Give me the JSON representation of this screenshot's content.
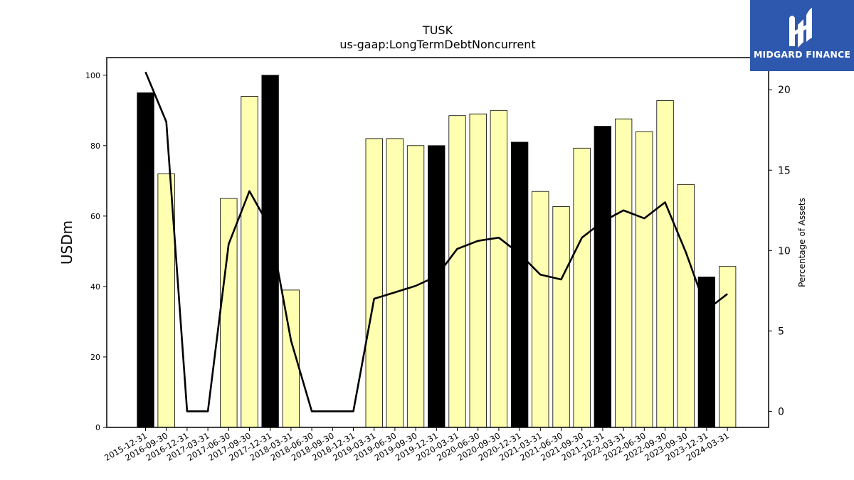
{
  "chart_data": {
    "type": "bar",
    "title": "TUSK",
    "subtitle": "us-gaap:LongTermDebtNoncurrent",
    "ylabel": "USDm",
    "y2label": "Percentage of Assets",
    "ylim": [
      0,
      105
    ],
    "y2lim": [
      -1,
      22
    ],
    "yticks": [
      0,
      20,
      40,
      60,
      80,
      100
    ],
    "y2ticks": [
      0,
      5,
      10,
      15,
      20
    ],
    "grid": false,
    "categories": [
      "2015-12-31",
      "2016-09-30",
      "2016-12-31",
      "2017-03-31",
      "2017-06-30",
      "2017-09-30",
      "2017-12-31",
      "2018-03-31",
      "2018-06-30",
      "2018-09-30",
      "2018-12-31",
      "2019-03-31",
      "2019-06-30",
      "2019-09-30",
      "2019-12-31",
      "2020-03-31",
      "2020-06-30",
      "2020-09-30",
      "2020-12-31",
      "2021-03-31",
      "2021-06-30",
      "2021-09-30",
      "2021-12-31",
      "2022-03-31",
      "2022-06-30",
      "2022-09-30",
      "2023-09-30",
      "2023-12-31",
      "2024-03-31"
    ],
    "series": [
      {
        "type": "bar",
        "axis": "left",
        "values": [
          95,
          72,
          0,
          0,
          65,
          94,
          100,
          39,
          0,
          0,
          0,
          82,
          82,
          80,
          80,
          88.5,
          89,
          90,
          81,
          67,
          62.7,
          79.3,
          85.5,
          87.6,
          84,
          92.8,
          69,
          42.7,
          45.7
        ],
        "highlight": [
          true,
          false,
          false,
          false,
          false,
          false,
          true,
          false,
          false,
          false,
          false,
          false,
          false,
          false,
          true,
          false,
          false,
          false,
          true,
          false,
          false,
          false,
          true,
          false,
          false,
          false,
          false,
          true,
          false
        ],
        "colors": {
          "normal": "#ffffb2",
          "highlight": "#000000"
        }
      },
      {
        "type": "line",
        "axis": "right",
        "values": [
          21.1,
          18.0,
          0,
          0,
          10.4,
          13.7,
          11.4,
          4.4,
          0,
          0,
          0,
          7.0,
          7.4,
          7.8,
          8.4,
          10.1,
          10.6,
          10.8,
          9.8,
          8.5,
          8.2,
          10.8,
          11.8,
          12.5,
          12.0,
          13.0,
          9.9,
          6.3,
          7.3
        ],
        "color": "#000000"
      }
    ]
  },
  "logo": {
    "text": "MIDGARD FINANCE",
    "bg": "#2d58ae"
  }
}
